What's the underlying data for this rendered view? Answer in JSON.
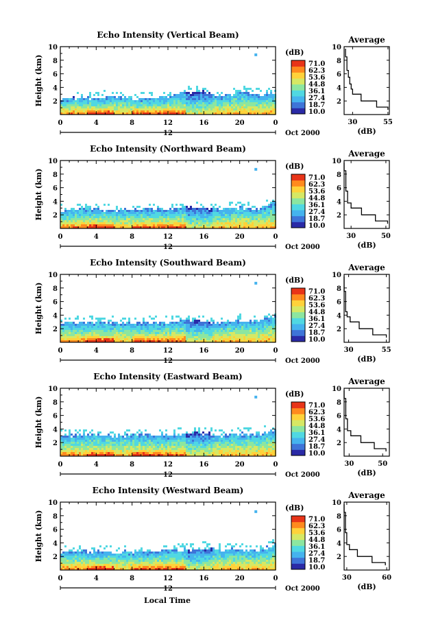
{
  "figure": {
    "xlabel": "Local Time",
    "x_ticks": [
      "0",
      "4",
      "8",
      "12",
      "16",
      "20",
      "0"
    ],
    "date_day": "12",
    "date_label": "Oct 2000",
    "ylabel": "Height (km)",
    "y_ticks": [
      "2",
      "4",
      "6",
      "8",
      "10"
    ],
    "colorbar_unit": "(dB)",
    "colorbar_labels": [
      "71.0",
      "62.3",
      "53.6",
      "44.8",
      "36.1",
      "27.4",
      "18.7",
      "10.0"
    ],
    "colors": {
      "colormap": [
        "#2a2aa6",
        "#3e74d8",
        "#45b3ee",
        "#50d8e2",
        "#8ce6a0",
        "#d6e864",
        "#ffd23a",
        "#ff8a1e",
        "#e83418"
      ],
      "axis": "#000000"
    }
  },
  "chart_data": [
    {
      "type": "heatmap",
      "title": "Echo Intensity (Vertical Beam)",
      "xlabel": "Local Time",
      "ylabel": "Height (km)",
      "xlim": [
        0,
        24
      ],
      "ylim": [
        0,
        10
      ],
      "colorbar": {
        "unit": "dB",
        "range": [
          10.0,
          71.0
        ]
      },
      "echo_top_km": [
        [
          0,
          2.2
        ],
        [
          2,
          2.5
        ],
        [
          4,
          2.4
        ],
        [
          6,
          2.8
        ],
        [
          8,
          2.3
        ],
        [
          10,
          2.4
        ],
        [
          12,
          2.6
        ],
        [
          14,
          3.2
        ],
        [
          16,
          3.4
        ],
        [
          18,
          2.6
        ],
        [
          20,
          3.3
        ],
        [
          22,
          2.9
        ],
        [
          24,
          3.3
        ]
      ],
      "isolated_echo": {
        "x": 21.8,
        "y": 8.8
      },
      "average_profile": {
        "title": "Average",
        "xlabel": "(dB)",
        "x_ticks": [
          "30",
          "55"
        ],
        "xlim": [
          24,
          56
        ],
        "heights": [
          0.7,
          1.5,
          2.5,
          3.5,
          4.0,
          5.0,
          6.0,
          7.0,
          8.0,
          9.0,
          9.7
        ],
        "values": [
          55,
          47,
          36,
          30,
          29,
          28,
          27,
          26,
          26,
          25,
          25
        ]
      }
    },
    {
      "type": "heatmap",
      "title": "Echo Intensity (Northward Beam)",
      "xlabel": "Local Time",
      "ylabel": "Height (km)",
      "xlim": [
        0,
        24
      ],
      "ylim": [
        0,
        10
      ],
      "colorbar": {
        "unit": "dB",
        "range": [
          10.0,
          71.0
        ]
      },
      "echo_top_km": [
        [
          0,
          2.6
        ],
        [
          2,
          2.8
        ],
        [
          4,
          2.9
        ],
        [
          6,
          2.6
        ],
        [
          8,
          2.8
        ],
        [
          10,
          2.8
        ],
        [
          12,
          2.7
        ],
        [
          14,
          3.1
        ],
        [
          16,
          3.0
        ],
        [
          18,
          2.8
        ],
        [
          20,
          3.1
        ],
        [
          22,
          2.8
        ],
        [
          24,
          3.8
        ]
      ],
      "isolated_echo": {
        "x": 21.8,
        "y": 8.7
      },
      "average_profile": {
        "title": "Average",
        "xlabel": "(dB)",
        "x_ticks": [
          "30",
          "50"
        ],
        "xlim": [
          26,
          52
        ],
        "heights": [
          0.7,
          1.5,
          2.5,
          3.5,
          4.0,
          5.0,
          6.0,
          7.0,
          8.0,
          9.0,
          9.7
        ],
        "values": [
          51,
          44,
          36,
          30,
          28,
          28,
          27,
          27,
          27,
          26,
          26
        ]
      }
    },
    {
      "type": "heatmap",
      "title": "Echo Intensity (Southward Beam)",
      "xlabel": "Local Time",
      "ylabel": "Height (km)",
      "xlim": [
        0,
        24
      ],
      "ylim": [
        0,
        10
      ],
      "colorbar": {
        "unit": "dB",
        "range": [
          10.0,
          71.0
        ]
      },
      "echo_top_km": [
        [
          0,
          2.8
        ],
        [
          2,
          2.9
        ],
        [
          4,
          3.0
        ],
        [
          6,
          2.9
        ],
        [
          8,
          2.8
        ],
        [
          10,
          2.9
        ],
        [
          12,
          2.9
        ],
        [
          14,
          3.2
        ],
        [
          16,
          3.1
        ],
        [
          18,
          2.8
        ],
        [
          20,
          3.2
        ],
        [
          22,
          3.0
        ],
        [
          24,
          3.9
        ]
      ],
      "isolated_echo": {
        "x": 21.8,
        "y": 8.7
      },
      "average_profile": {
        "title": "Average",
        "xlabel": "(dB)",
        "x_ticks": [
          "30",
          "55"
        ],
        "xlim": [
          27,
          57
        ],
        "heights": [
          0.7,
          1.5,
          2.5,
          3.5,
          4.0,
          5.0,
          6.0,
          7.0,
          8.0,
          9.0,
          9.7
        ],
        "values": [
          55,
          46,
          37,
          31,
          29,
          28,
          28,
          28,
          27,
          27,
          27
        ]
      }
    },
    {
      "type": "heatmap",
      "title": "Echo Intensity (Eastward Beam)",
      "xlabel": "Local Time",
      "ylabel": "Height (km)",
      "xlim": [
        0,
        24
      ],
      "ylim": [
        0,
        10
      ],
      "colorbar": {
        "unit": "dB",
        "range": [
          10.0,
          71.0
        ]
      },
      "echo_top_km": [
        [
          0,
          3.0
        ],
        [
          2,
          3.1
        ],
        [
          4,
          3.2
        ],
        [
          6,
          3.0
        ],
        [
          8,
          3.2
        ],
        [
          10,
          3.1
        ],
        [
          12,
          3.0
        ],
        [
          14,
          3.4
        ],
        [
          16,
          3.4
        ],
        [
          18,
          3.0
        ],
        [
          20,
          3.4
        ],
        [
          22,
          3.2
        ],
        [
          24,
          4.0
        ]
      ],
      "isolated_echo": {
        "x": 21.8,
        "y": 8.7
      },
      "average_profile": {
        "title": "Average",
        "xlabel": "(dB)",
        "x_ticks": [
          "30",
          "50"
        ],
        "xlim": [
          27,
          54
        ],
        "heights": [
          0.7,
          1.5,
          2.5,
          3.5,
          4.0,
          5.0,
          6.0,
          7.0,
          8.0,
          9.0,
          9.7
        ],
        "values": [
          52,
          45,
          37,
          31,
          29,
          29,
          28,
          28,
          28,
          27,
          27
        ]
      }
    },
    {
      "type": "heatmap",
      "title": "Echo Intensity (Westward Beam)",
      "xlabel": "Local Time",
      "ylabel": "Height (km)",
      "xlim": [
        0,
        24
      ],
      "ylim": [
        0,
        10
      ],
      "colorbar": {
        "unit": "dB",
        "range": [
          10.0,
          71.0
        ]
      },
      "echo_top_km": [
        [
          0,
          2.5
        ],
        [
          2,
          2.8
        ],
        [
          4,
          2.7
        ],
        [
          6,
          2.6
        ],
        [
          8,
          2.7
        ],
        [
          10,
          2.7
        ],
        [
          12,
          2.8
        ],
        [
          14,
          3.0
        ],
        [
          16,
          3.3
        ],
        [
          18,
          2.9
        ],
        [
          20,
          3.1
        ],
        [
          22,
          2.8
        ],
        [
          24,
          3.8
        ]
      ],
      "isolated_echo": {
        "x": 21.8,
        "y": 8.6
      },
      "average_profile": {
        "title": "Average",
        "xlabel": "(dB)",
        "x_ticks": [
          "30",
          "60"
        ],
        "xlim": [
          28,
          62
        ],
        "heights": [
          0.7,
          1.5,
          2.5,
          3.5,
          4.0,
          5.0,
          6.0,
          7.0,
          8.0,
          9.0,
          9.7
        ],
        "values": [
          59,
          49,
          38,
          32,
          30,
          30,
          29,
          29,
          29,
          28,
          28
        ]
      }
    }
  ]
}
